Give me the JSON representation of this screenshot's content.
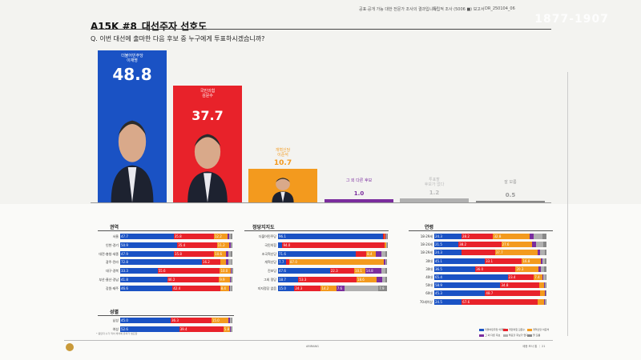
{
  "header": {
    "left_text": "공표·공개 가능 대한 전문가 조사의 결과입니다",
    "mid_text": "독립적 조사 (5006 ■) 보고서",
    "code": "DR_250104_06",
    "watermark": "1877-1907"
  },
  "title": {
    "main": "A15K #8",
    "sub": "대선주자 선호도"
  },
  "question": "Q. 이번 대선에 출마한 다음 후보 중 누구에게 투표하시겠습니까?",
  "chart_data": [
    {
      "type": "bar",
      "title": "대선주자 선호도",
      "ylim": [
        0,
        50
      ],
      "categories": [
        "더불어민주당 이재명",
        "국민의힘 김문수",
        "개혁신당 이준석",
        "그 외 다른 후보",
        "투표할 후보가 없다",
        "잘 모름"
      ],
      "values": [
        48.8,
        37.7,
        10.7,
        1.0,
        1.2,
        0.5
      ],
      "colors": [
        "#1a52c4",
        "#e8222a",
        "#f39a1e",
        "#7b2d9e",
        "#b0b0b0",
        "#888888"
      ],
      "label_colors": [
        "#ffffff",
        "#ffffff",
        "#f39a1e",
        "#7b2d9e",
        "#bbbbbb",
        "#999999"
      ]
    },
    {
      "type": "bar",
      "title": "권역",
      "stacked": true,
      "orientation": "horizontal",
      "categories": [
        "서울",
        "인천·경기",
        "대전·충청·세종",
        "광주·전라",
        "대구·경북",
        "부산·울산·경남",
        "강원·제주"
      ],
      "series": [
        {
          "values": [
            47.7,
            50.9,
            47.9,
            72.8,
            33.3,
            41.8,
            46.6
          ]
        },
        {
          "values": [
            35.8,
            35.4,
            35.8,
            16.2,
            55.6,
            46.2,
            42.4
          ]
        },
        {
          "values": [
            12.2,
            11.2,
            10.6,
            5.6,
            10.0,
            9.9,
            8.4
          ]
        },
        {
          "values": [
            1.4,
            1.0,
            1.8,
            1.8,
            0.5,
            0.8,
            0.8
          ]
        },
        {
          "values": [
            1.8,
            1.0,
            2.6,
            2.6,
            0.3,
            0.9,
            1.0
          ]
        },
        {
          "values": [
            1.1,
            0.5,
            1.3,
            1.0,
            0.3,
            0.4,
            0.8
          ]
        }
      ]
    },
    {
      "type": "bar",
      "title": "성별",
      "stacked": true,
      "orientation": "horizontal",
      "categories": [
        "남성",
        "여성"
      ],
      "series": [
        {
          "values": [
            45.0,
            52.6
          ]
        },
        {
          "values": [
            36.3,
            39.4
          ]
        },
        {
          "values": [
            15.0,
            5.8
          ]
        },
        {
          "values": [
            1.5,
            0.9
          ]
        },
        {
          "values": [
            1.4,
            0.9
          ]
        },
        {
          "values": [
            0.8,
            0.4
          ]
        }
      ]
    },
    {
      "type": "bar",
      "title": "정당지지도",
      "stacked": true,
      "orientation": "horizontal",
      "categories": [
        "더불어민주당",
        "국민의힘",
        "조국혁신당",
        "개혁신당",
        "진보당",
        "그외 정당",
        "지지정당 없음"
      ],
      "series": [
        {
          "values": [
            96.1,
            4.0,
            71.6,
            7.7,
            47.6,
            18.7,
            15.0
          ]
        },
        {
          "values": [
            1.6,
            94.0,
            9.4,
            2.6,
            22.3,
            53.3,
            24.3
          ]
        },
        {
          "values": [
            1.2,
            1.2,
            8.4,
            87.0,
            10.1,
            18.6,
            14.2
          ]
        },
        {
          "values": [
            0.5,
            0.3,
            5.3,
            1.0,
            14.8,
            5.0,
            7.6
          ]
        },
        {
          "values": [
            0.4,
            0.3,
            3.8,
            1.0,
            4.0,
            3.0,
            31.0
          ]
        },
        {
          "values": [
            0.2,
            0.2,
            1.5,
            0.7,
            1.2,
            1.4,
            7.9
          ]
        }
      ],
      "labels": [
        [
          "96.1",
          "",
          "",
          "",
          "",
          ""
        ],
        [
          "",
          "94.0",
          "",
          "",
          "",
          ""
        ],
        [
          "71.6",
          "",
          "8.4",
          "5.3",
          "",
          ""
        ],
        [
          "7.7",
          "",
          "87.0",
          "",
          "",
          ""
        ],
        [
          "47.6",
          "22.3",
          "10.1",
          "14.8",
          "",
          ""
        ],
        [
          "18.7",
          "53.3",
          "18.6",
          "",
          "",
          ""
        ],
        [
          "15.0",
          "24.3",
          "14.2",
          "7.6",
          "",
          "7.9"
        ]
      ]
    },
    {
      "type": "bar",
      "title": "연령",
      "stacked": true,
      "orientation": "horizontal",
      "categories": [
        "18-29세",
        "18-24세",
        "18-29세",
        "30대",
        "30대",
        "40대",
        "50대",
        "60대",
        "70세이상"
      ],
      "series": [
        {
          "values": [
            24.3,
            21.5,
            24.3,
            45.1,
            36.5,
            65.4,
            58.9,
            45.3,
            24.5
          ]
        },
        {
          "values": [
            28.2,
            38.2,
            29.8,
            33.1,
            36.0,
            23.4,
            34.8,
            48.7,
            67.6
          ]
        },
        {
          "values": [
            32.8,
            27.6,
            37.7,
            16.8,
            20.3,
            7.4,
            4.5,
            4.6,
            5.8
          ]
        },
        {
          "values": [
            3.0,
            3.4,
            2.7,
            1.6,
            2.1,
            1.2,
            0.7,
            0.4,
            0.8
          ]
        },
        {
          "values": [
            8.5,
            6.8,
            4.3,
            2.2,
            3.3,
            1.6,
            0.6,
            0.6,
            0.8
          ]
        },
        {
          "values": [
            3.2,
            2.5,
            1.2,
            1.2,
            1.8,
            1.0,
            0.5,
            0.4,
            0.5
          ]
        }
      ],
      "labels": [
        [
          "24.3",
          "28.2",
          "32.8",
          "",
          "",
          ""
        ],
        [
          "21.5",
          "38.2",
          "27.6",
          "",
          "",
          ""
        ],
        [
          "24.3",
          "",
          "37.7",
          "",
          "",
          ""
        ],
        [
          "45.1",
          "33.1",
          "16.8",
          "",
          "",
          ""
        ],
        [
          "36.5",
          "36.0",
          "20.3",
          "",
          "",
          ""
        ],
        [
          "65.4",
          "23.4",
          "7.4",
          "",
          "",
          ""
        ],
        [
          "58.9",
          "34.8",
          "",
          "",
          "",
          ""
        ],
        [
          "45.3",
          "48.7",
          "",
          "",
          "",
          ""
        ],
        [
          "24.5",
          "67.6",
          "",
          "",
          "",
          ""
        ]
      ]
    }
  ],
  "candidate_labels": [
    [
      "더불어민주당",
      "이재명"
    ],
    [
      "국민의힘",
      "김문수"
    ],
    [
      "개혁신당",
      "이준석"
    ],
    [
      "그 외 다른 후보"
    ],
    [
      "투표할",
      "후보가 없다"
    ],
    [
      "잘 모름"
    ]
  ],
  "legend": [
    "더불어민주당 이재명",
    "국민의힘 김문수",
    "개혁신당 이준석",
    "그 외 다른 후보",
    "투표할 후보가 없다",
    "잘 모름"
  ],
  "footer": {
    "center": "ARIRANG",
    "right": "세종 조사 통 ｜ 21",
    "note": "* 응답자 수가 적어 해석에 유의가 필요함"
  }
}
